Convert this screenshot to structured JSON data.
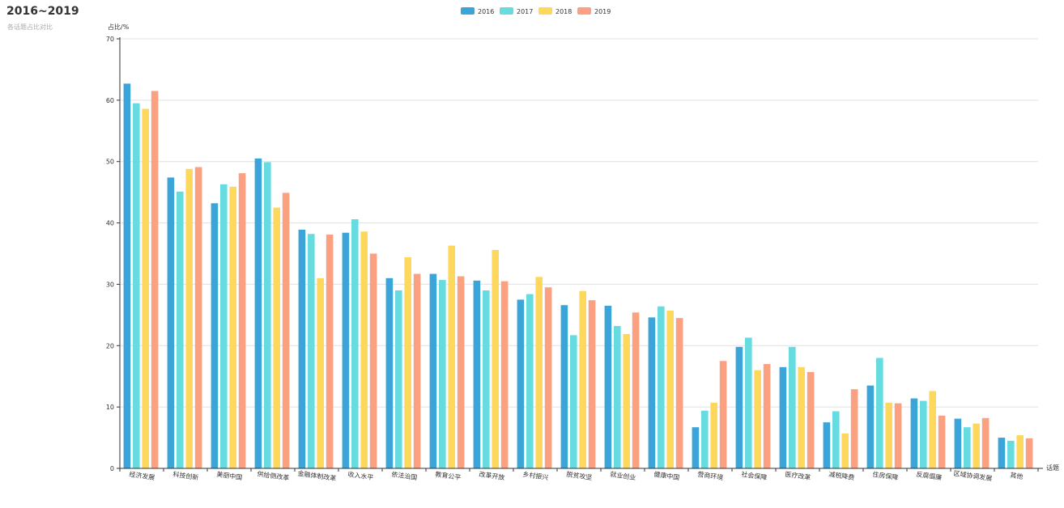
{
  "chart_data": {
    "type": "bar",
    "title": "2016~2019",
    "subtitle": "各话题占比对比",
    "xlabel": "话题",
    "ylabel": "占比/%",
    "ylim": [
      0,
      70
    ],
    "yticks": [
      0,
      10,
      20,
      30,
      40,
      50,
      60,
      70
    ],
    "grid": true,
    "legend_position": "top-center",
    "categories": [
      "经济发展",
      "科技创新",
      "美丽中国",
      "供给侧改革",
      "金融体制改革",
      "收入水平",
      "依法治国",
      "教育公平",
      "改革开放",
      "乡村振兴",
      "脱贫攻坚",
      "就业创业",
      "健康中国",
      "营商环境",
      "社会保障",
      "医疗改革",
      "减税降费",
      "住房保障",
      "反腐倡廉",
      "区域协调发展",
      "其他"
    ],
    "series": [
      {
        "name": "2016",
        "color": "#3ba4d8",
        "values": [
          62.7,
          47.4,
          43.2,
          50.5,
          38.9,
          38.4,
          31.0,
          31.7,
          30.6,
          27.5,
          26.6,
          26.5,
          24.6,
          6.7,
          19.8,
          16.5,
          7.5,
          13.5,
          11.4,
          8.1,
          5.0
        ]
      },
      {
        "name": "2017",
        "color": "#66dbe0",
        "values": [
          59.5,
          45.1,
          46.3,
          49.9,
          38.2,
          40.6,
          29.0,
          30.7,
          29.0,
          28.4,
          21.7,
          23.2,
          26.4,
          9.4,
          21.3,
          19.8,
          9.3,
          18.0,
          11.0,
          6.7,
          4.5
        ]
      },
      {
        "name": "2018",
        "color": "#fdd85c",
        "values": [
          58.6,
          48.8,
          45.9,
          42.5,
          31.0,
          38.6,
          34.4,
          36.3,
          35.6,
          31.2,
          28.9,
          21.9,
          25.7,
          10.7,
          16.0,
          16.5,
          5.7,
          10.7,
          12.6,
          7.3,
          5.4
        ]
      },
      {
        "name": "2019",
        "color": "#fba081",
        "values": [
          61.5,
          49.1,
          48.1,
          44.9,
          38.1,
          35.0,
          31.7,
          31.3,
          30.5,
          29.5,
          27.4,
          25.4,
          24.5,
          17.5,
          17.0,
          15.7,
          12.9,
          10.6,
          8.6,
          8.2,
          4.9
        ]
      }
    ]
  }
}
